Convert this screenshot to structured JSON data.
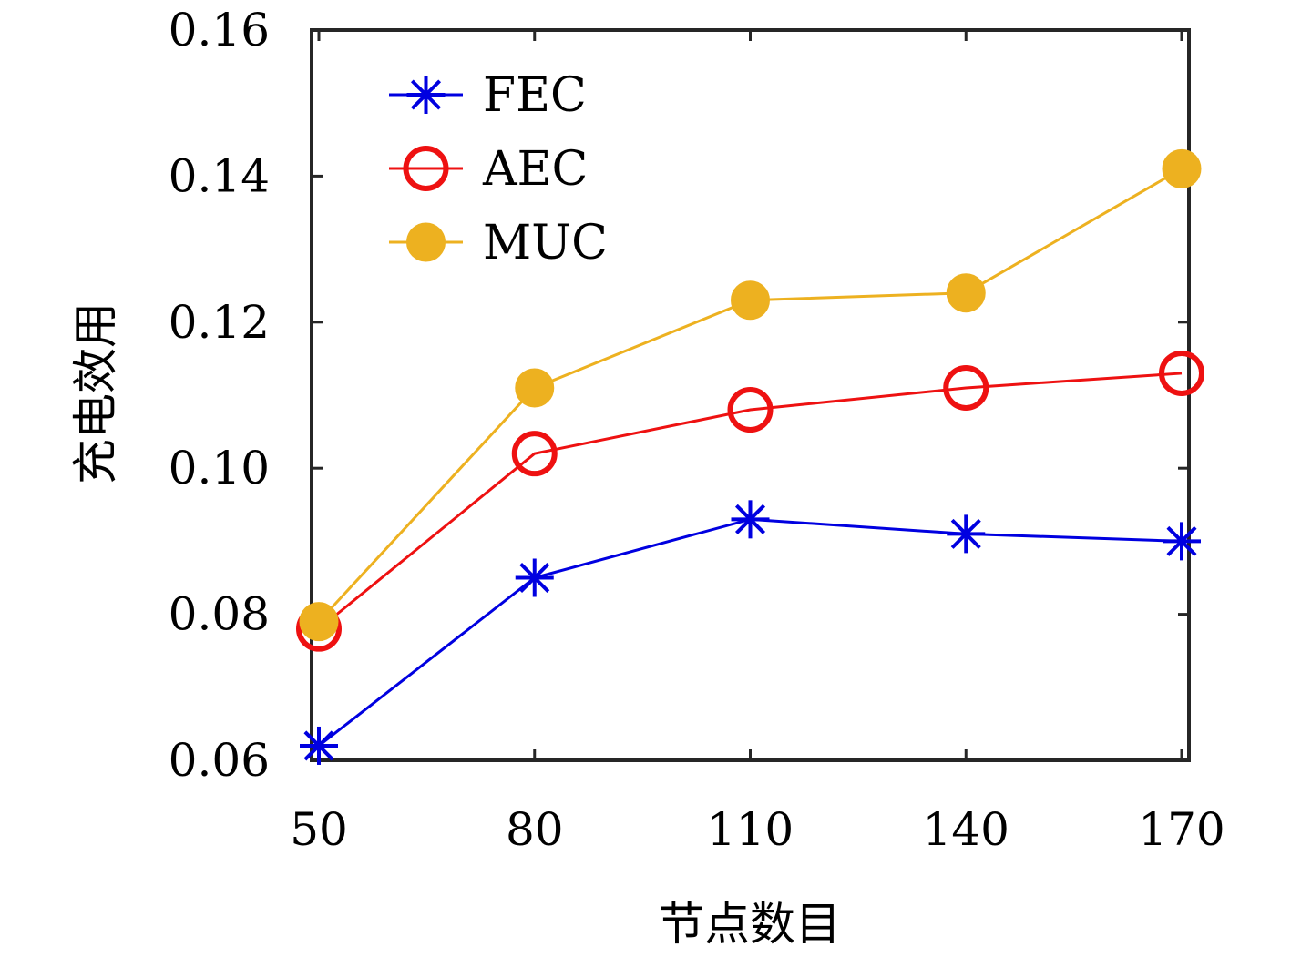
{
  "chart_data": {
    "type": "line",
    "title": "",
    "xlabel": "节点数目",
    "ylabel": "充电效用",
    "categories": [
      "50",
      "80",
      "110",
      "140",
      "170"
    ],
    "x": [
      50,
      80,
      110,
      140,
      170
    ],
    "xlim": [
      50,
      170
    ],
    "ylim": [
      0.06,
      0.16
    ],
    "yticks": [
      "0.06",
      "0.08",
      "0.10",
      "0.12",
      "0.14",
      "0.16"
    ],
    "ytick_values": [
      0.06,
      0.08,
      0.1,
      0.12,
      0.14,
      0.16
    ],
    "grid": false,
    "legend_position": "top-left",
    "series": [
      {
        "name": "FEC",
        "color": "#0000e0",
        "marker": "asterisk",
        "values": [
          0.062,
          0.085,
          0.093,
          0.091,
          0.09
        ]
      },
      {
        "name": "AEC",
        "color": "#ee1111",
        "marker": "open-circle",
        "values": [
          0.078,
          0.102,
          0.108,
          0.111,
          0.113
        ]
      },
      {
        "name": "MUC",
        "color": "#edb120",
        "marker": "filled-circle",
        "values": [
          0.079,
          0.111,
          0.123,
          0.124,
          0.141
        ]
      }
    ]
  }
}
